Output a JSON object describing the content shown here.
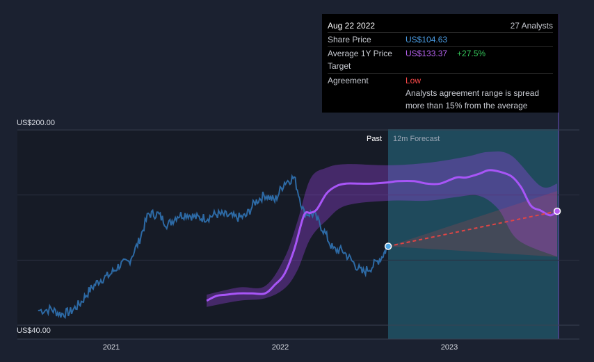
{
  "tooltip": {
    "date": "Aug 22 2022",
    "analysts": "27 Analysts",
    "share_price_label": "Share Price",
    "share_price_value": "US$104.63",
    "target_label": "Average 1Y Price Target",
    "target_value": "US$133.37",
    "target_change": "+27.5%",
    "agreement_label": "Agreement",
    "agreement_value": "Low",
    "agreement_desc": "Analysts agreement range is spread more than 15% from the average"
  },
  "colors": {
    "background": "#1b2130",
    "share_price": "#2d6aa5",
    "price_target": "#a855f7",
    "forecast_region": "#1f4a5c",
    "forecast_line": "#e04545",
    "positive": "#35c65a",
    "negative": "#ff4a4a"
  },
  "chart_data": {
    "type": "line",
    "y_axis": {
      "labels": [
        "US$200.00",
        "US$40.00"
      ],
      "ylim": [
        40,
        200
      ],
      "grid": true
    },
    "x_axis": {
      "ticks": [
        "2021",
        "2022",
        "2023"
      ]
    },
    "regions": {
      "past_label": "Past",
      "forecast_label": "12m Forecast",
      "split_date": "2022-08-22"
    },
    "series": [
      {
        "name": "Share Price",
        "x": [
          "2020-07-27",
          "2020-08-24",
          "2020-09-14",
          "2020-10-05",
          "2020-10-26",
          "2020-11-16",
          "2020-12-07",
          "2020-12-28",
          "2021-01-18",
          "2021-02-08",
          "2021-03-01",
          "2021-03-22",
          "2021-04-12",
          "2021-05-03",
          "2021-05-24",
          "2021-06-14",
          "2021-07-05",
          "2021-07-26",
          "2021-08-16",
          "2021-09-06",
          "2021-09-27",
          "2021-10-18",
          "2021-11-08",
          "2021-11-29",
          "2021-12-20",
          "2022-01-10",
          "2022-01-31",
          "2022-02-21",
          "2022-03-14",
          "2022-04-04",
          "2022-04-25",
          "2022-05-16",
          "2022-06-06",
          "2022-06-27",
          "2022-07-18",
          "2022-08-08",
          "2022-08-22"
        ],
        "y": [
          52,
          53,
          49,
          51,
          58,
          69,
          77,
          81,
          89,
          92,
          108,
          131,
          131,
          122,
          130,
          131,
          128,
          128,
          131,
          130,
          128,
          129,
          141,
          147,
          142,
          157,
          161,
          132,
          131,
          118,
          102,
          101,
          92,
          83,
          88,
          96,
          104.63
        ]
      },
      {
        "name": "Average 1Y Price Target",
        "x": [
          "2021-07-26",
          "2021-08-16",
          "2021-09-06",
          "2021-10-04",
          "2021-11-01",
          "2021-11-29",
          "2021-12-20",
          "2022-01-10",
          "2022-01-31",
          "2022-02-21",
          "2022-03-07",
          "2022-03-21",
          "2022-04-11",
          "2022-05-02",
          "2022-05-23",
          "2022-06-20",
          "2022-07-18",
          "2022-08-22",
          "2022-09-12",
          "2022-10-17",
          "2022-11-14",
          "2022-12-12",
          "2023-01-16",
          "2023-02-06",
          "2023-03-06",
          "2023-03-27",
          "2023-04-17",
          "2023-05-15",
          "2023-06-05",
          "2023-06-26",
          "2023-07-17",
          "2023-08-07",
          "2023-08-22"
        ],
        "y": [
          60,
          64,
          65,
          66,
          66,
          66,
          73,
          82,
          102,
          130,
          132,
          135,
          148,
          154,
          156,
          156,
          156,
          157,
          158,
          158,
          156,
          156,
          161,
          161,
          164,
          167,
          166,
          162,
          153,
          138,
          134,
          130,
          133.37
        ]
      }
    ],
    "band_upper": [
      [
        "2021-07-26",
        65
      ],
      [
        "2021-10-04",
        71
      ],
      [
        "2021-11-29",
        72
      ],
      [
        "2022-01-10",
        95
      ],
      [
        "2022-02-07",
        125
      ],
      [
        "2022-03-07",
        160
      ],
      [
        "2022-04-11",
        169
      ],
      [
        "2022-05-23",
        172
      ],
      [
        "2022-08-22",
        171
      ],
      [
        "2022-11-14",
        173
      ],
      [
        "2023-02-06",
        178
      ],
      [
        "2023-03-27",
        182
      ],
      [
        "2023-05-15",
        179
      ],
      [
        "2023-07-17",
        154
      ],
      [
        "2023-08-22",
        156
      ]
    ],
    "band_lower": [
      [
        "2021-07-26",
        55
      ],
      [
        "2021-10-04",
        60
      ],
      [
        "2021-11-29",
        62
      ],
      [
        "2022-01-10",
        70
      ],
      [
        "2022-02-07",
        85
      ],
      [
        "2022-03-07",
        111
      ],
      [
        "2022-04-11",
        126
      ],
      [
        "2022-05-23",
        138
      ],
      [
        "2022-08-22",
        142
      ],
      [
        "2022-11-14",
        142
      ],
      [
        "2023-01-16",
        145
      ],
      [
        "2023-03-06",
        146
      ],
      [
        "2023-04-17",
        135
      ],
      [
        "2023-05-29",
        110
      ],
      [
        "2023-08-22",
        96
      ]
    ],
    "forecast_cone": {
      "start": [
        "2022-08-22",
        104.63
      ],
      "end_high": [
        "2023-08-22",
        150
      ],
      "end_low": [
        "2023-08-22",
        96
      ],
      "end_mid": [
        "2023-08-22",
        133.37
      ]
    }
  }
}
